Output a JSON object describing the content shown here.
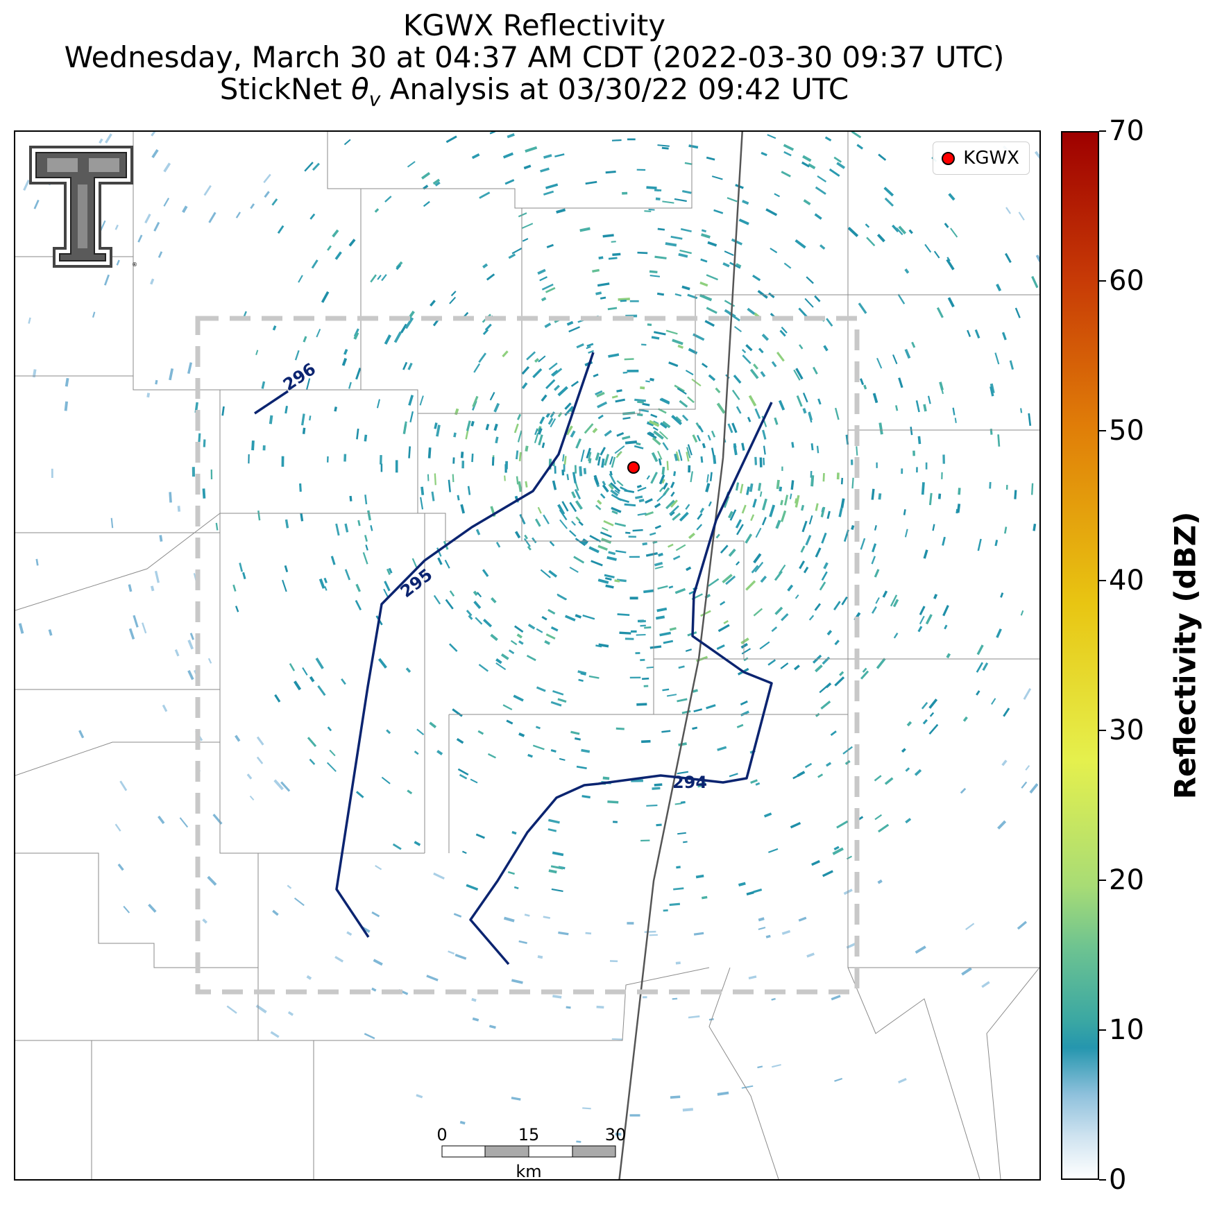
{
  "title": {
    "line1": "KGWX Reflectivity",
    "line2": "Wednesday, March 30 at 04:37 AM CDT (2022-03-30 09:37 UTC)",
    "line3_prefix": "StickNet ",
    "line3_symbol": "θ",
    "line3_subscript": "v",
    "line3_suffix": " Analysis at 03/30/22 09:42 UTC"
  },
  "legend": {
    "label": "KGWX",
    "marker_color": "#ff0000"
  },
  "scale_bar": {
    "labels": [
      "0",
      "15",
      "30"
    ],
    "unit": "km"
  },
  "contours": [
    {
      "label": "296",
      "value": 296
    },
    {
      "label": "295",
      "value": 295
    },
    {
      "label": "294",
      "value": 294
    }
  ],
  "colorbar": {
    "title": "Reflectivity (dBZ)",
    "ticks": [
      "70",
      "60",
      "50",
      "40",
      "30",
      "20",
      "10",
      "0"
    ],
    "range": [
      0,
      70
    ]
  },
  "colors": {
    "contour": "#0b2470",
    "reflectivity_low": "#2596ae",
    "reflectivity_high": "#9e0000",
    "analysis_box": "#c8c8c8"
  },
  "logo": {
    "name": "Texas Tech double-T",
    "registered": "®"
  }
}
